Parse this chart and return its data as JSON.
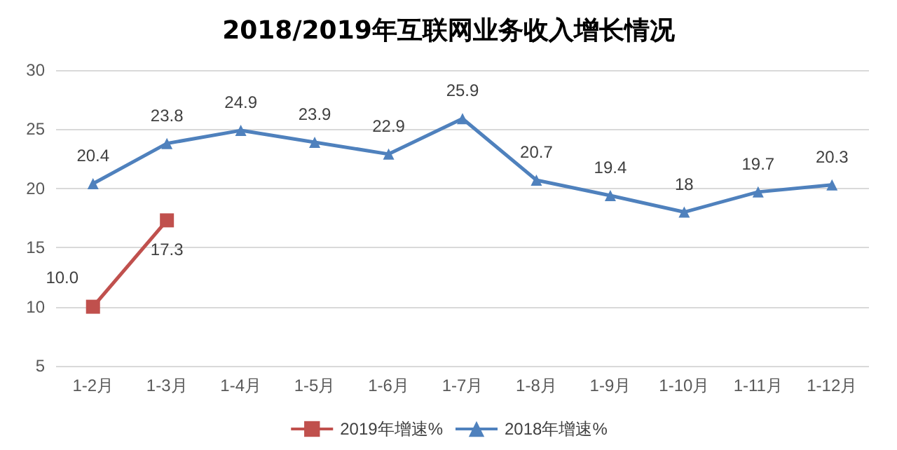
{
  "chart_data": {
    "type": "line",
    "title": "2018/2019年互联网业务收入增长情况",
    "categories": [
      "1-2月",
      "1-3月",
      "1-4月",
      "1-5月",
      "1-6月",
      "1-7月",
      "1-8月",
      "1-9月",
      "1-10月",
      "1-11月",
      "1-12月"
    ],
    "series": [
      {
        "name": "2019年增速%",
        "color": "#c0504d",
        "marker": "square",
        "values": [
          10.0,
          17.3,
          null,
          null,
          null,
          null,
          null,
          null,
          null,
          null,
          null
        ],
        "value_labels": [
          "10.0",
          "17.3",
          null,
          null,
          null,
          null,
          null,
          null,
          null,
          null,
          null
        ]
      },
      {
        "name": "2018年增速%",
        "color": "#4f81bd",
        "marker": "triangle",
        "values": [
          20.4,
          23.8,
          24.9,
          23.9,
          22.9,
          25.9,
          20.7,
          19.4,
          18,
          19.7,
          20.3
        ],
        "value_labels": [
          "20.4",
          "23.8",
          "24.9",
          "23.9",
          "22.9",
          "25.9",
          "20.7",
          "19.4",
          "18",
          "19.7",
          "20.3"
        ]
      }
    ],
    "ylim": [
      5,
      30
    ],
    "yticks": [
      5,
      10,
      15,
      20,
      25,
      30
    ],
    "grid": "y",
    "legend": "bottom"
  }
}
